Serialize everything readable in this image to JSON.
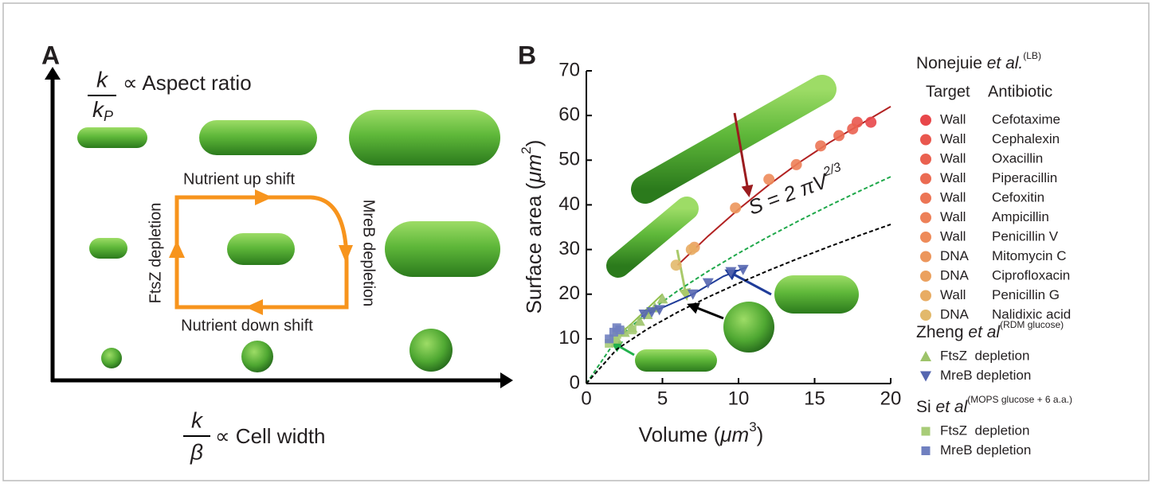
{
  "panel_a": {
    "label": "A",
    "y_axis": {
      "numerator": "k",
      "denominator": "k",
      "denominator_sub": "P",
      "text": "∝ Aspect ratio"
    },
    "x_axis": {
      "numerator": "k",
      "denominator": "β",
      "text": "∝ Cell width"
    },
    "loop": {
      "top": "Nutrient up shift",
      "right": "MreB depletion",
      "bottom": "Nutrient down shift",
      "left": "FtsZ depletion"
    }
  },
  "chart_data": {
    "type": "scatter",
    "label": "B",
    "xlabel": {
      "text": "Volume (",
      "unit": "μm",
      "exponent": "3",
      "close": ")"
    },
    "ylabel": {
      "text": "Surface area (",
      "unit": "μm",
      "exponent": "2",
      "close": ")"
    },
    "xlim": [
      0,
      20
    ],
    "ylim": [
      0,
      70
    ],
    "xticks": [
      0,
      5,
      10,
      15,
      20
    ],
    "yticks": [
      0,
      10,
      20,
      30,
      40,
      50,
      60,
      70
    ],
    "annotation": {
      "text": "S = 2 πV",
      "exponent": "2/3"
    },
    "groups": [
      {
        "author": "Nonejuie ",
        "etal": "et al.",
        "condition": "(LB)",
        "headers": [
          "Target",
          "Antibiotic"
        ],
        "series": [
          {
            "target": "Wall",
            "name": "Cefotaxime",
            "marker": "circle",
            "color": "#e8474a",
            "x": [
              18.7
            ],
            "values": [
              58.5
            ]
          },
          {
            "target": "Wall",
            "name": "Cephalexin",
            "marker": "circle",
            "color": "#e9574e",
            "x": [
              17.8
            ],
            "values": [
              58.5
            ]
          },
          {
            "target": "Wall",
            "name": "Oxacillin",
            "marker": "circle",
            "color": "#ea6150",
            "x": [
              17.5
            ],
            "values": [
              57
            ]
          },
          {
            "target": "Wall",
            "name": "Piperacillin",
            "marker": "circle",
            "color": "#eb6b52",
            "x": [
              16.6
            ],
            "values": [
              55.5
            ]
          },
          {
            "target": "Wall",
            "name": "Cefoxitin",
            "marker": "circle",
            "color": "#ec7555",
            "x": [
              15.4
            ],
            "values": [
              53.2
            ]
          },
          {
            "target": "Wall",
            "name": "Ampicillin",
            "marker": "circle",
            "color": "#ed8058",
            "x": [
              13.8
            ],
            "values": [
              49
            ]
          },
          {
            "target": "Wall",
            "name": "Penicillin V",
            "marker": "circle",
            "color": "#ee8b5a",
            "x": [
              12
            ],
            "values": [
              45.7
            ]
          },
          {
            "target": "DNA",
            "name": "Mitomycin C",
            "marker": "circle",
            "color": "#ec965c",
            "x": [
              9.8
            ],
            "values": [
              39.3
            ]
          },
          {
            "target": "DNA",
            "name": "Ciprofloxacin",
            "marker": "circle",
            "color": "#eba15f",
            "x": [
              7.1
            ],
            "values": [
              30.5
            ]
          },
          {
            "target": "Wall",
            "name": "Penicillin G",
            "marker": "circle",
            "color": "#e8ac63",
            "x": [
              6.9
            ],
            "values": [
              30
            ]
          },
          {
            "target": "DNA",
            "name": "Nalidixic acid",
            "marker": "circle",
            "color": "#e2b96b",
            "x": [
              5.9
            ],
            "values": [
              26.5
            ]
          }
        ]
      },
      {
        "author": "Zheng ",
        "etal": "et al",
        "condition": "(RDM glucose)",
        "series": [
          {
            "name": "FtsZ  depletion",
            "marker": "triangle-up",
            "color": "#9dc36a",
            "x": [
              2,
              2.5,
              3,
              3.5,
              4,
              4.5,
              5
            ],
            "values": [
              10,
              11.5,
              12.5,
              14,
              15.5,
              17,
              19
            ]
          },
          {
            "name": "MreB depletion",
            "marker": "triangle-down",
            "color": "#5566b0",
            "x": [
              3.8,
              4.3,
              4.8,
              7,
              8,
              9.5,
              10.3
            ],
            "values": [
              15.5,
              16,
              16.5,
              20,
              22.5,
              25,
              25.5
            ]
          }
        ]
      },
      {
        "author": "Si ",
        "etal": "et al",
        "condition": "(MOPS glucose + 6 a.a.)",
        "series": [
          {
            "name": "FtsZ  depletion",
            "marker": "square",
            "color": "#a8cc78",
            "x": [
              1.5,
              1.8,
              2,
              3
            ],
            "values": [
              9,
              10,
              11,
              12
            ]
          },
          {
            "name": "MreB depletion",
            "marker": "square",
            "color": "#7080c0",
            "x": [
              1.5,
              1.8,
              2,
              2.2
            ],
            "values": [
              10,
              11.5,
              12.5,
              12
            ]
          }
        ]
      }
    ],
    "curves": [
      {
        "color": "#1fa84a",
        "dashed": true,
        "x": [
          0,
          2,
          4,
          6,
          8,
          10,
          12,
          14,
          16,
          18,
          20
        ],
        "values": [
          0,
          9.97,
          15.83,
          20.75,
          25.13,
          29.17,
          32.94,
          36.5,
          39.9,
          43.15,
          46.29
        ]
      },
      {
        "color": "#000000",
        "dashed": true,
        "x": [
          0,
          2,
          4,
          6,
          8,
          10,
          12,
          14,
          16,
          18,
          20
        ],
        "values": [
          0,
          7.67,
          12.19,
          15.97,
          19.34,
          22.45,
          25.35,
          28.09,
          30.71,
          33.21,
          35.63
        ]
      },
      {
        "color": "#b22222",
        "dashed": false,
        "x": [
          6,
          8,
          10,
          12,
          14,
          16,
          18,
          20
        ],
        "values": [
          26.5,
          33,
          39,
          44.5,
          49.5,
          54,
          58,
          62
        ]
      },
      {
        "color": "#1f3c99",
        "dashed": false,
        "x": [
          3.6,
          5,
          7,
          9,
          10.5
        ],
        "values": [
          15,
          17,
          20,
          24,
          26
        ]
      },
      {
        "color": "#8fbf4a",
        "dashed": false,
        "x": [
          1.5,
          3,
          5
        ],
        "values": [
          9,
          13.5,
          20
        ]
      }
    ]
  }
}
